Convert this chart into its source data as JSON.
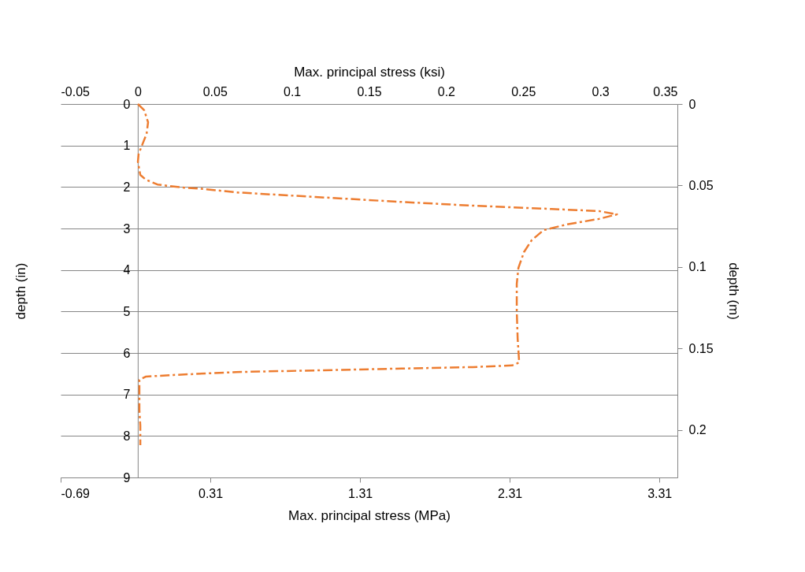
{
  "chart_data": {
    "type": "line",
    "xlabel": "Max. principal stress (MPa)",
    "ylabel": "depth (in)",
    "x2label": "Max. principal stress (ksi)",
    "y2label": "depth (m)",
    "xlim": [
      -0.69,
      3.43
    ],
    "xticks": [
      -0.69,
      0.31,
      1.31,
      2.31,
      3.31
    ],
    "x2lim": [
      -0.05,
      0.35
    ],
    "x2ticks": [
      -0.05,
      0,
      0.05,
      0.1,
      0.15,
      0.2,
      0.25,
      0.3,
      0.35
    ],
    "ylim": [
      9,
      0
    ],
    "yticks": [
      0,
      1,
      2,
      3,
      4,
      5,
      6,
      7,
      8,
      9
    ],
    "y2lim": [
      0.229,
      0
    ],
    "y2ticks": [
      0,
      0.05,
      0.1,
      0.15,
      0.2
    ],
    "grid": "y",
    "line_style": "dashed",
    "marker": "none",
    "series": [
      {
        "color": "#ed7d31",
        "x": [
          -0.174,
          -0.132,
          -0.106,
          -0.116,
          -0.148,
          -0.169,
          -0.174,
          -0.158,
          -0.122,
          -0.043,
          0.115,
          0.273,
          0.484,
          1.01,
          1.536,
          2.063,
          2.589,
          2.905,
          3.026,
          2.905,
          2.694,
          2.536,
          2.457,
          2.405,
          2.368,
          2.357,
          2.357,
          2.363,
          2.373,
          2.326,
          2.063,
          1.536,
          1.01,
          0.484,
          0.063,
          -0.122,
          -0.164,
          -0.164,
          -0.158,
          -0.158
        ],
        "values": [
          0,
          0.15,
          0.44,
          0.72,
          1.01,
          1.2,
          1.39,
          1.71,
          1.82,
          1.94,
          2.01,
          2.05,
          2.13,
          2.24,
          2.35,
          2.45,
          2.53,
          2.58,
          2.66,
          2.77,
          2.9,
          3.04,
          3.28,
          3.57,
          3.95,
          4.33,
          4.99,
          5.66,
          6.23,
          6.3,
          6.34,
          6.38,
          6.42,
          6.46,
          6.53,
          6.57,
          6.65,
          7.37,
          7.75,
          8.22
        ]
      }
    ]
  }
}
